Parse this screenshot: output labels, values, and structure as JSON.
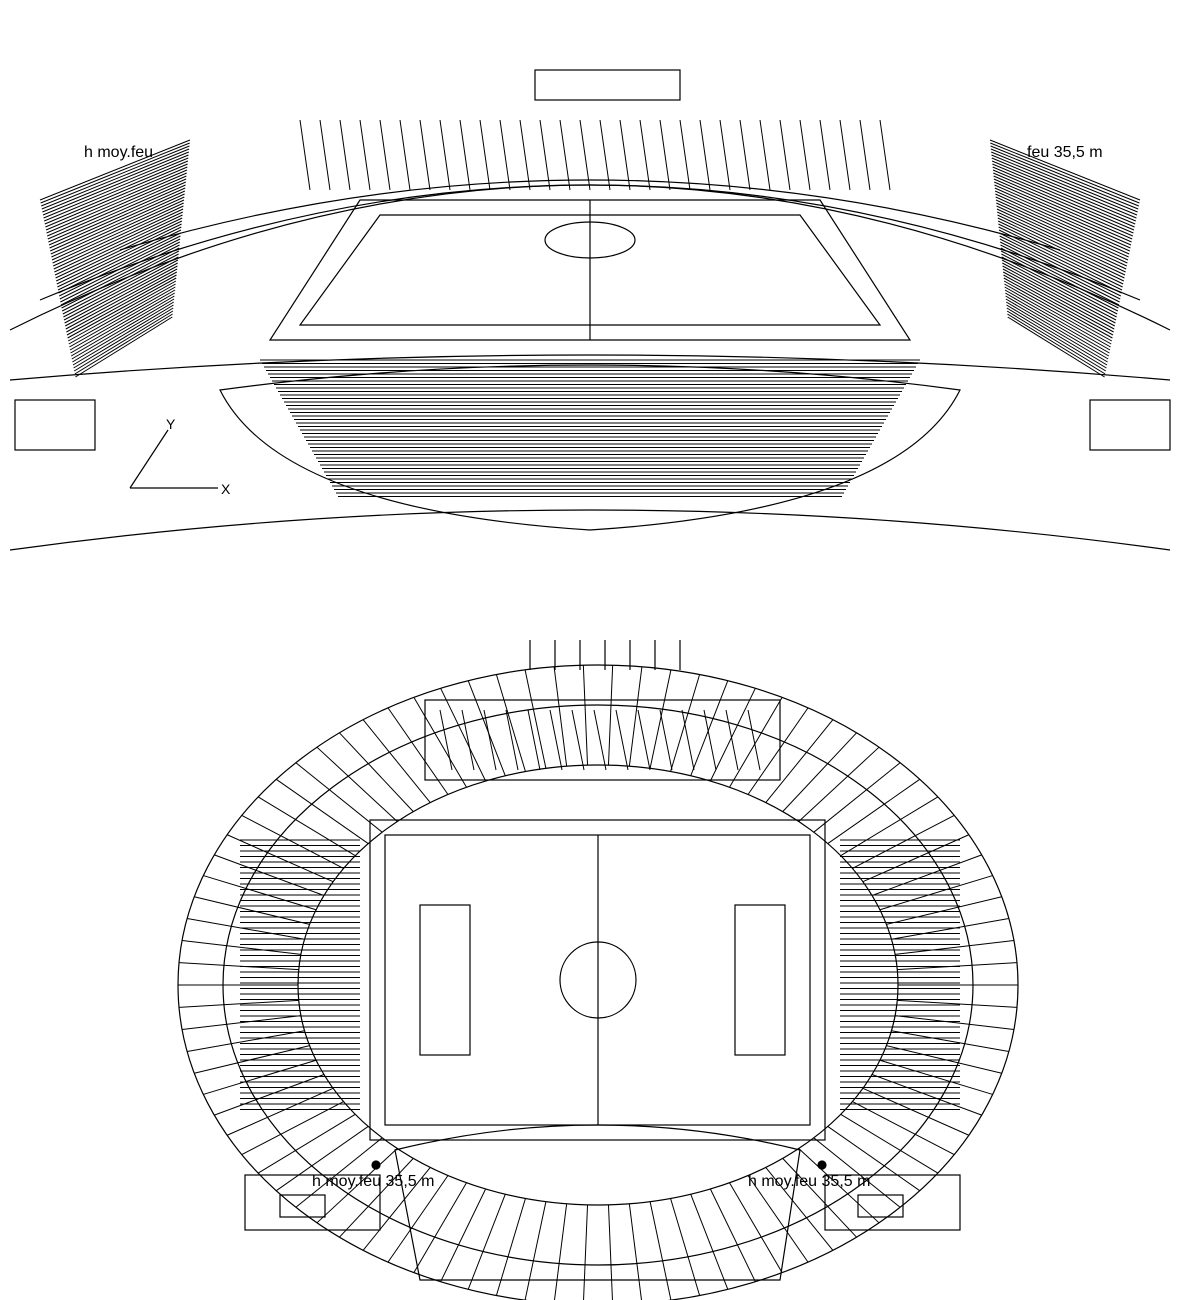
{
  "top_view": {
    "label_left": "h moy.feu",
    "label_right": "feu 35,5 m",
    "axis_x": "X",
    "axis_y": "Y"
  },
  "bottom_view": {
    "label_left": "h moy.feu 35,5 m",
    "label_right": "h moy.feu 35,5 m"
  },
  "colors": {
    "lines": "#000000",
    "beam_blue": "#1f2bd6",
    "beam_magenta": "#e23de0",
    "beam_red": "#d02020",
    "beam_gray": "#9a9a9a"
  }
}
